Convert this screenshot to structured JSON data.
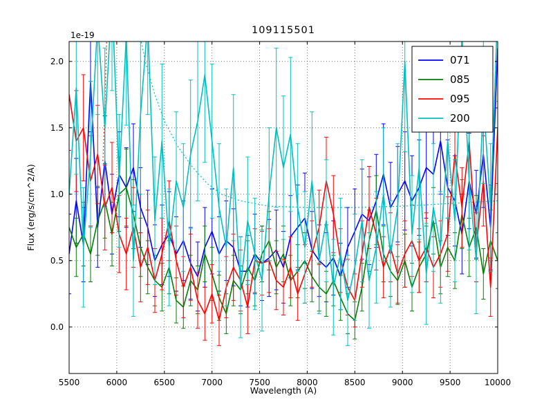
{
  "chart_data": {
    "type": "line",
    "title": "109115501",
    "xlabel": "Wavelength (A)",
    "ylabel": "Flux (erg/s/cm^2/A)",
    "y_offset_label": "1e-19",
    "xlim": [
      5500,
      10000
    ],
    "ylim": [
      -0.35,
      2.15
    ],
    "xticks": [
      5500,
      6000,
      6500,
      7000,
      7500,
      8000,
      8500,
      9000,
      9500,
      10000
    ],
    "yticks": [
      0.0,
      0.5,
      1.0,
      1.5,
      2.0
    ],
    "grid": true,
    "legend_position": "upper right",
    "x": [
      5500,
      5575,
      5650,
      5725,
      5800,
      5875,
      5950,
      6025,
      6100,
      6175,
      6250,
      6325,
      6400,
      6475,
      6550,
      6625,
      6700,
      6775,
      6850,
      6925,
      7000,
      7075,
      7150,
      7225,
      7300,
      7375,
      7450,
      7525,
      7600,
      7675,
      7750,
      7825,
      7900,
      7975,
      8050,
      8125,
      8200,
      8275,
      8350,
      8425,
      8500,
      8575,
      8650,
      8725,
      8800,
      8875,
      8950,
      9025,
      9100,
      9175,
      9250,
      9325,
      9400,
      9475,
      9550,
      9625,
      9700,
      9775,
      9850,
      9925,
      10000
    ],
    "series": [
      {
        "name": "071",
        "color": "#0000ff",
        "values": [
          0.55,
          0.95,
          0.62,
          1.85,
          0.75,
          1.25,
          0.85,
          1.15,
          1.05,
          1.2,
          0.9,
          0.75,
          0.5,
          0.62,
          0.7,
          0.55,
          0.65,
          0.48,
          0.38,
          0.6,
          0.72,
          0.55,
          0.65,
          0.6,
          0.42,
          0.42,
          0.55,
          0.48,
          0.52,
          0.58,
          0.45,
          0.68,
          0.75,
          0.82,
          0.58,
          0.5,
          0.45,
          0.52,
          0.38,
          0.6,
          0.72,
          0.85,
          0.8,
          0.95,
          1.15,
          0.9,
          1.0,
          1.1,
          0.95,
          1.05,
          1.2,
          1.15,
          1.4,
          1.05,
          0.95,
          0.7,
          1.1,
          0.85,
          1.3,
          0.75,
          2.1
        ],
        "errors": [
          0.3,
          0.32,
          0.28,
          0.38,
          0.3,
          0.34,
          0.3,
          0.32,
          0.3,
          0.33,
          0.3,
          0.28,
          0.27,
          0.3,
          0.32,
          0.28,
          0.3,
          0.27,
          0.26,
          0.3,
          0.32,
          0.28,
          0.3,
          0.29,
          0.26,
          0.27,
          0.3,
          0.28,
          0.29,
          0.3,
          0.27,
          0.31,
          0.32,
          0.34,
          0.29,
          0.27,
          0.26,
          0.28,
          0.25,
          0.3,
          0.32,
          0.34,
          0.33,
          0.35,
          0.38,
          0.34,
          0.36,
          0.37,
          0.34,
          0.36,
          0.38,
          0.37,
          0.4,
          0.36,
          0.34,
          0.3,
          0.36,
          0.33,
          0.4,
          0.32,
          0.45
        ]
      },
      {
        "name": "085",
        "color": "#007f00",
        "values": [
          0.75,
          0.6,
          0.7,
          0.55,
          0.8,
          0.95,
          0.7,
          1.0,
          1.05,
          0.85,
          0.6,
          0.45,
          0.35,
          0.3,
          0.45,
          0.2,
          0.15,
          0.35,
          0.28,
          0.55,
          0.4,
          0.22,
          0.1,
          0.35,
          0.28,
          0.45,
          0.35,
          0.55,
          0.65,
          0.45,
          0.55,
          0.35,
          0.42,
          0.5,
          0.38,
          0.3,
          0.25,
          0.35,
          0.22,
          0.1,
          0.05,
          0.3,
          0.65,
          0.88,
          0.55,
          0.42,
          0.35,
          0.5,
          0.3,
          0.45,
          0.55,
          0.8,
          0.45,
          0.6,
          0.5,
          0.85,
          0.6,
          0.75,
          0.4,
          0.65,
          0.5
        ],
        "errors": [
          0.25,
          0.22,
          0.24,
          0.21,
          0.26,
          0.28,
          0.24,
          0.28,
          0.29,
          0.26,
          0.22,
          0.2,
          0.19,
          0.18,
          0.2,
          0.17,
          0.16,
          0.19,
          0.18,
          0.21,
          0.2,
          0.17,
          0.15,
          0.19,
          0.18,
          0.2,
          0.19,
          0.21,
          0.22,
          0.2,
          0.21,
          0.19,
          0.2,
          0.21,
          0.19,
          0.18,
          0.17,
          0.19,
          0.17,
          0.15,
          0.14,
          0.18,
          0.23,
          0.26,
          0.21,
          0.19,
          0.18,
          0.2,
          0.18,
          0.19,
          0.21,
          0.25,
          0.2,
          0.22,
          0.21,
          0.26,
          0.22,
          0.24,
          0.19,
          0.23,
          0.21
        ]
      },
      {
        "name": "095",
        "color": "#ff0000",
        "values": [
          1.75,
          1.4,
          1.5,
          1.1,
          1.3,
          0.9,
          1.05,
          0.7,
          0.55,
          0.75,
          0.45,
          0.6,
          0.35,
          0.55,
          0.8,
          0.5,
          0.3,
          0.45,
          0.2,
          0.1,
          0.25,
          0.05,
          0.3,
          0.45,
          0.35,
          0.15,
          0.5,
          0.48,
          0.5,
          0.35,
          0.3,
          0.45,
          0.25,
          0.4,
          0.55,
          0.75,
          1.1,
          0.85,
          0.5,
          0.3,
          0.2,
          0.55,
          0.9,
          0.7,
          0.45,
          0.6,
          0.4,
          0.55,
          0.65,
          0.5,
          0.6,
          0.45,
          0.55,
          0.7,
          1.3,
          0.9,
          1.4,
          0.6,
          1.1,
          0.3,
          1.5
        ],
        "errors": [
          0.42,
          0.38,
          0.4,
          0.34,
          0.37,
          0.32,
          0.34,
          0.29,
          0.27,
          0.3,
          0.26,
          0.28,
          0.24,
          0.27,
          0.3,
          0.26,
          0.23,
          0.25,
          0.21,
          0.2,
          0.22,
          0.19,
          0.23,
          0.25,
          0.23,
          0.2,
          0.24,
          0.24,
          0.24,
          0.22,
          0.21,
          0.23,
          0.2,
          0.22,
          0.25,
          0.28,
          0.33,
          0.29,
          0.24,
          0.21,
          0.2,
          0.25,
          0.31,
          0.27,
          0.23,
          0.26,
          0.22,
          0.25,
          0.27,
          0.24,
          0.26,
          0.23,
          0.25,
          0.28,
          0.38,
          0.3,
          0.4,
          0.26,
          0.34,
          0.22,
          0.42
        ]
      },
      {
        "name": "200",
        "color": "#00bfbf",
        "values": [
          1.0,
          1.8,
          0.6,
          1.3,
          2.3,
          1.5,
          2.5,
          1.1,
          2.2,
          0.5,
          1.6,
          2.3,
          0.8,
          1.4,
          0.6,
          1.1,
          0.9,
          1.3,
          1.55,
          1.9,
          1.4,
          0.9,
          0.6,
          1.2,
          0.3,
          0.8,
          0.55,
          0.35,
          1.0,
          1.5,
          1.2,
          1.45,
          0.9,
          0.6,
          1.1,
          0.5,
          0.8,
          0.3,
          0.55,
          0.2,
          0.45,
          0.8,
          0.35,
          0.6,
          1.0,
          0.55,
          0.9,
          2.0,
          0.7,
          1.2,
          0.4,
          0.9,
          0.6,
          1.4,
          0.8,
          2.2,
          1.1,
          0.5,
          1.7,
          0.9,
          2.4
        ],
        "errors": [
          0.5,
          0.65,
          0.45,
          0.55,
          0.7,
          0.6,
          0.72,
          0.5,
          0.68,
          0.42,
          0.6,
          0.7,
          0.48,
          0.58,
          0.44,
          0.52,
          0.48,
          0.56,
          0.6,
          0.66,
          0.58,
          0.48,
          0.44,
          0.55,
          0.38,
          0.48,
          0.42,
          0.38,
          0.5,
          0.6,
          0.54,
          0.58,
          0.48,
          0.42,
          0.52,
          0.4,
          0.46,
          0.36,
          0.42,
          0.34,
          0.4,
          0.46,
          0.36,
          0.42,
          0.5,
          0.4,
          0.48,
          0.68,
          0.44,
          0.54,
          0.38,
          0.48,
          0.42,
          0.58,
          0.46,
          0.72,
          0.52,
          0.4,
          0.62,
          0.48,
          0.7
        ]
      }
    ],
    "aux_dotted": [
      {
        "color": "#00bfbf",
        "points": [
          [
            6200,
            2.35
          ],
          [
            6300,
            2.0
          ],
          [
            6400,
            1.75
          ],
          [
            6500,
            1.55
          ],
          [
            6650,
            1.35
          ],
          [
            6800,
            1.2
          ],
          [
            6950,
            1.08
          ],
          [
            7100,
            1.0
          ],
          [
            7300,
            0.95
          ],
          [
            7600,
            0.91
          ],
          [
            8000,
            0.9
          ],
          [
            8500,
            0.9
          ],
          [
            9000,
            0.91
          ],
          [
            9500,
            0.93
          ],
          [
            10000,
            0.95
          ]
        ]
      },
      {
        "color": "#cc3300",
        "points": [
          [
            5855,
            1.25
          ],
          [
            5870,
            1.55
          ],
          [
            5885,
            1.9
          ],
          [
            5900,
            2.35
          ]
        ]
      }
    ],
    "colors": {
      "axes": "#000000",
      "grid": "#555555",
      "background": "#ffffff"
    }
  }
}
